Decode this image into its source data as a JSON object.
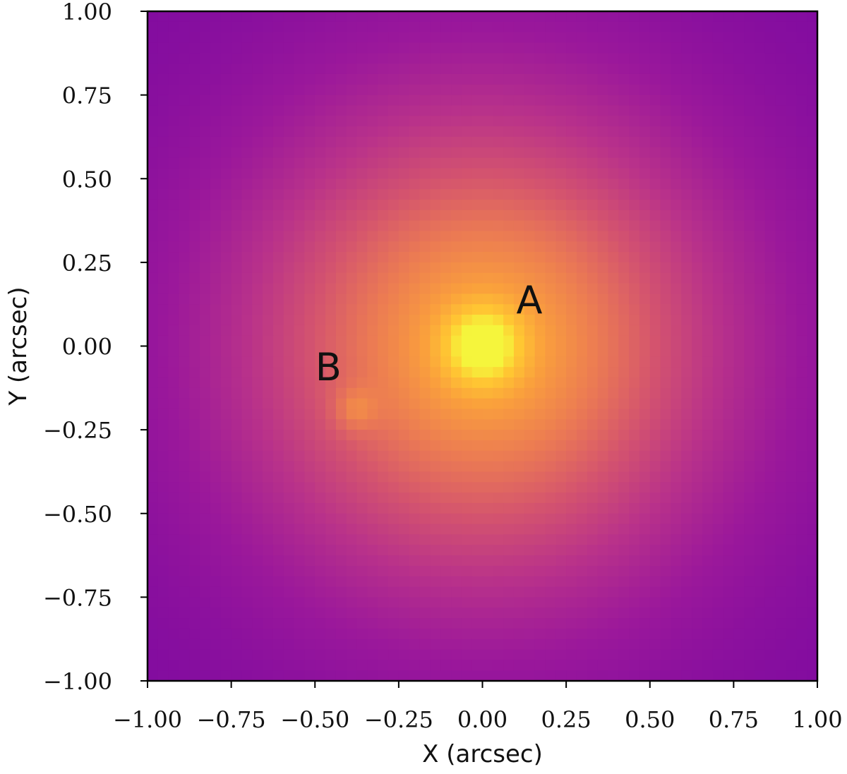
{
  "chart_data": {
    "type": "heatmap",
    "title": "",
    "xlabel": "X (arcsec)",
    "ylabel": "Y (arcsec)",
    "xlim": [
      -1.0,
      1.0
    ],
    "ylim": [
      -1.0,
      1.0
    ],
    "grid": false,
    "colormap": "plasma",
    "colors": {
      "low": "#7e0aa0",
      "mid_low": "#b0308f",
      "mid": "#d85a6a",
      "mid_high": "#f08a4c",
      "high": "#ffc840",
      "peak": "#f5f53a"
    },
    "x_ticks": [
      -1.0,
      -0.75,
      -0.5,
      -0.25,
      0.0,
      0.25,
      0.5,
      0.75,
      1.0
    ],
    "x_tick_labels": [
      "−1.00",
      "−0.75",
      "−0.50",
      "−0.25",
      "0.00",
      "0.25",
      "0.50",
      "0.75",
      "1.00"
    ],
    "y_ticks": [
      -1.0,
      -0.75,
      -0.5,
      -0.25,
      0.0,
      0.25,
      0.5,
      0.75,
      1.0
    ],
    "y_tick_labels": [
      "−1.00",
      "−0.75",
      "−0.50",
      "−0.25",
      "0.00",
      "0.25",
      "0.50",
      "0.75",
      "1.00"
    ],
    "sources": [
      {
        "label": "A",
        "x": 0.0,
        "y": 0.0,
        "label_x": 0.14,
        "label_y": 0.14
      },
      {
        "label": "B",
        "x": -0.38,
        "y": -0.19,
        "label_x": -0.46,
        "label_y": -0.06
      }
    ]
  }
}
